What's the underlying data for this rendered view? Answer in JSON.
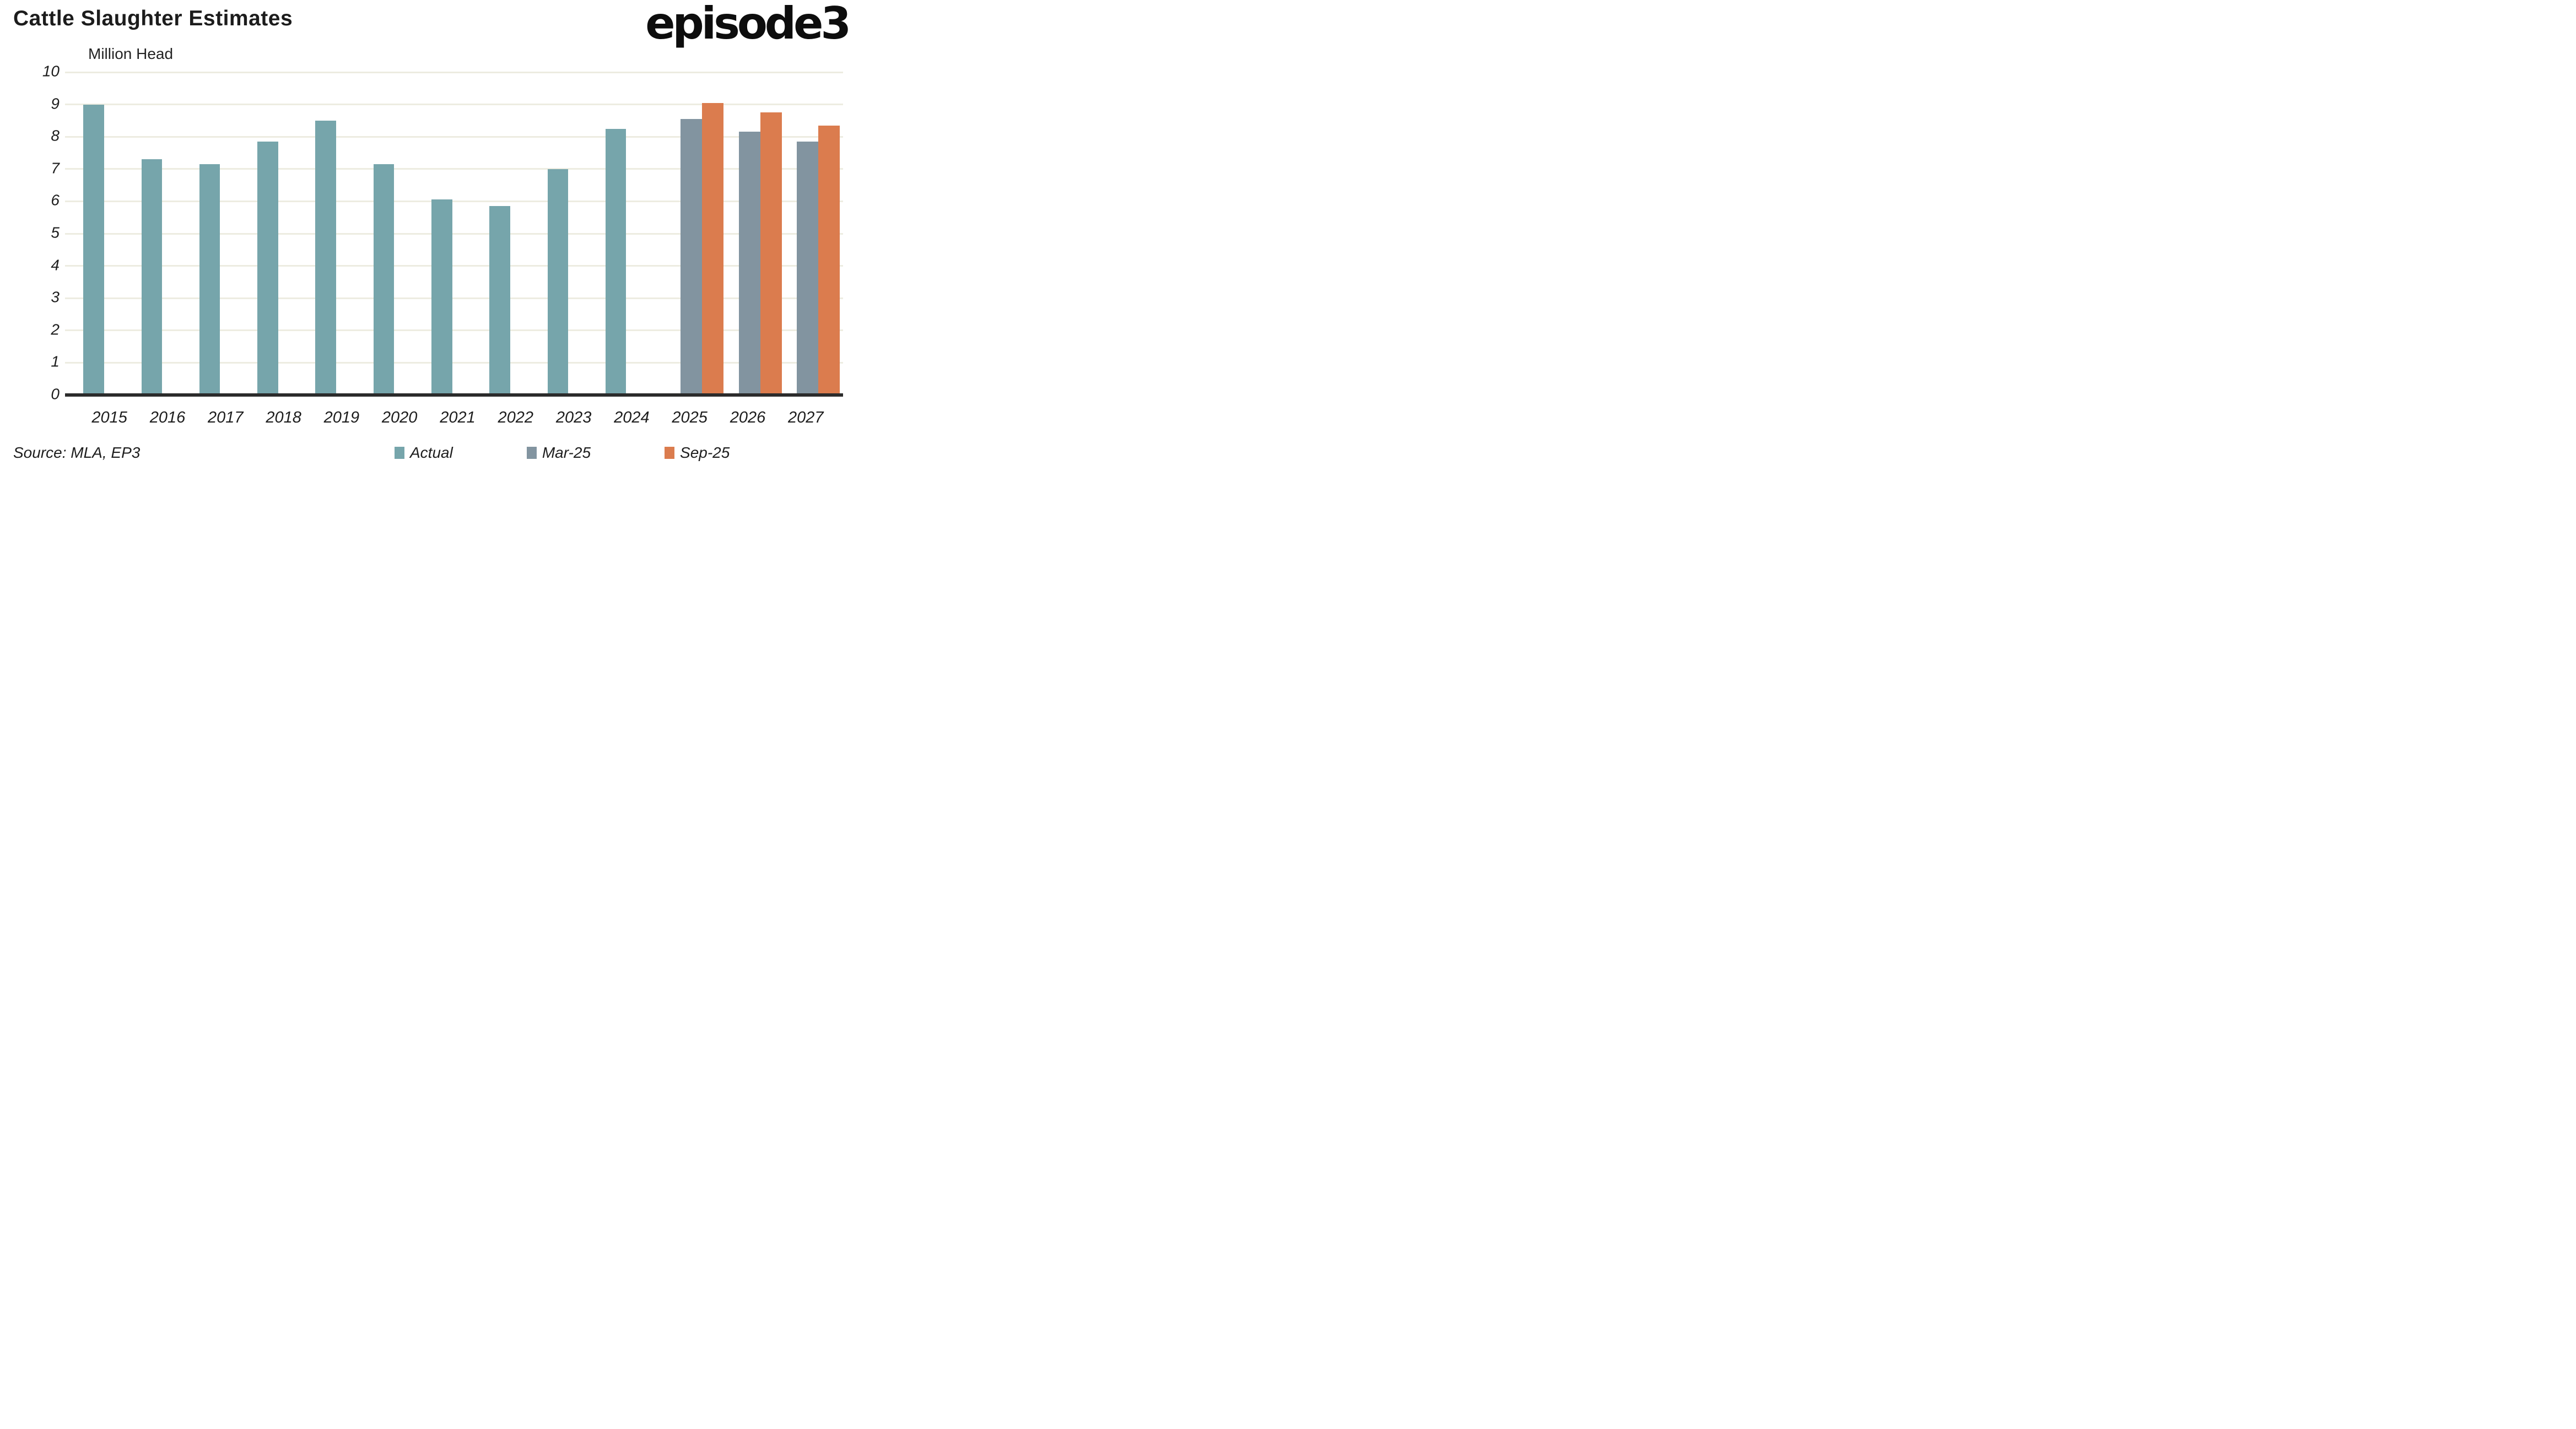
{
  "header": {
    "title": "Cattle Slaughter Estimates",
    "logo_text": "episode3"
  },
  "source_note": "Source: MLA, EP3",
  "colors": {
    "actual": "#76a5ab",
    "mar25": "#8294a0",
    "sep25": "#db7c4e",
    "gridline": "#edece1",
    "axis_line": "#2b2b2b",
    "text": "#1d1d1d"
  },
  "chart_data": {
    "type": "bar",
    "title": "Cattle Slaughter Estimates",
    "subtitle": "Million Head",
    "xlabel": "",
    "ylabel": "Million Head",
    "ylim": [
      0,
      10
    ],
    "y_ticks": [
      0,
      1,
      2,
      3,
      4,
      5,
      6,
      7,
      8,
      9,
      10
    ],
    "grid": "horizontal",
    "legend_position": "bottom",
    "categories": [
      "2015",
      "2016",
      "2017",
      "2018",
      "2019",
      "2020",
      "2021",
      "2022",
      "2023",
      "2024",
      "2025",
      "2026",
      "2027"
    ],
    "series": [
      {
        "name": "Actual",
        "color": "#76a5ab",
        "values": [
          9.0,
          7.3,
          7.15,
          7.85,
          8.5,
          7.15,
          6.05,
          5.85,
          7.0,
          8.25,
          null,
          null,
          null
        ]
      },
      {
        "name": "Mar-25",
        "color": "#8294a0",
        "values": [
          null,
          null,
          null,
          null,
          null,
          null,
          null,
          null,
          null,
          null,
          8.55,
          8.15,
          7.85
        ]
      },
      {
        "name": "Sep-25",
        "color": "#db7c4e",
        "values": [
          null,
          null,
          null,
          null,
          null,
          null,
          null,
          null,
          null,
          null,
          9.05,
          8.75,
          8.35
        ]
      }
    ]
  }
}
